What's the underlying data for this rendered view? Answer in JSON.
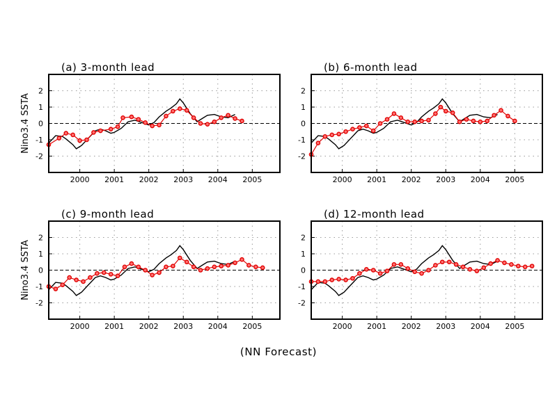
{
  "caption": "(NN Forecast)",
  "chart_data": [
    {
      "type": "line",
      "title": "(a) 3-month lead",
      "ylabel": "Nino3.4 SSTA",
      "xlim": [
        1999.1,
        2005.8
      ],
      "ylim": [
        -3,
        3
      ],
      "xticks": [
        2000,
        2001,
        2002,
        2003,
        2004,
        2005
      ],
      "yticks": [
        -2,
        -1,
        0,
        1,
        2
      ],
      "grid": true,
      "series": [
        {
          "role": "observed",
          "color": "#000000",
          "x": [
            1999.1,
            1999.3,
            1999.5,
            1999.6,
            1999.8,
            1999.9,
            2000.05,
            2000.25,
            2000.45,
            2000.6,
            2000.75,
            2000.9,
            2001.0,
            2001.2,
            2001.4,
            2001.6,
            2001.8,
            2002.0,
            2002.15,
            2002.3,
            2002.5,
            2002.65,
            2002.8,
            2002.9,
            2003.0,
            2003.2,
            2003.4,
            2003.55,
            2003.7,
            2003.9,
            2004.1,
            2004.3,
            2004.5
          ],
          "y": [
            -1.2,
            -0.75,
            -0.8,
            -0.95,
            -1.3,
            -1.55,
            -1.35,
            -0.9,
            -0.45,
            -0.35,
            -0.45,
            -0.6,
            -0.55,
            -0.3,
            0.1,
            0.2,
            0.05,
            -0.1,
            0.05,
            0.4,
            0.75,
            0.95,
            1.2,
            1.5,
            1.25,
            0.6,
            0.1,
            0.3,
            0.5,
            0.55,
            0.4,
            0.35,
            0.55
          ]
        },
        {
          "role": "forecast",
          "color": "#e00000",
          "x": [
            1999.1,
            1999.4,
            1999.6,
            1999.8,
            2000.0,
            2000.2,
            2000.4,
            2000.6,
            2000.9,
            2001.1,
            2001.25,
            2001.5,
            2001.7,
            2001.9,
            2002.1,
            2002.3,
            2002.5,
            2002.7,
            2002.9,
            2003.1,
            2003.3,
            2003.5,
            2003.7,
            2003.9,
            2004.1,
            2004.3,
            2004.5,
            2004.7
          ],
          "y": [
            -1.3,
            -0.9,
            -0.6,
            -0.7,
            -1.05,
            -1.0,
            -0.55,
            -0.45,
            -0.35,
            -0.2,
            0.35,
            0.4,
            0.25,
            0.05,
            -0.15,
            -0.1,
            0.45,
            0.75,
            0.9,
            0.8,
            0.35,
            0.0,
            -0.05,
            0.1,
            0.35,
            0.5,
            0.3,
            0.15
          ]
        }
      ]
    },
    {
      "type": "line",
      "title": "(b) 6-month lead",
      "ylabel": "",
      "xlim": [
        1999.1,
        2005.8
      ],
      "ylim": [
        -3,
        3
      ],
      "xticks": [
        2000,
        2001,
        2002,
        2003,
        2004,
        2005
      ],
      "yticks": [
        -2,
        -1,
        0,
        1,
        2
      ],
      "grid": true,
      "series": [
        {
          "role": "observed",
          "color": "#000000",
          "x": [
            1999.1,
            1999.3,
            1999.5,
            1999.6,
            1999.8,
            1999.9,
            2000.05,
            2000.25,
            2000.45,
            2000.6,
            2000.75,
            2000.9,
            2001.0,
            2001.2,
            2001.4,
            2001.6,
            2001.8,
            2002.0,
            2002.15,
            2002.3,
            2002.5,
            2002.65,
            2002.8,
            2002.9,
            2003.0,
            2003.2,
            2003.4,
            2003.55,
            2003.7,
            2003.9,
            2004.1,
            2004.3,
            2004.5
          ],
          "y": [
            -1.2,
            -0.75,
            -0.8,
            -0.95,
            -1.3,
            -1.55,
            -1.35,
            -0.9,
            -0.45,
            -0.35,
            -0.45,
            -0.6,
            -0.55,
            -0.3,
            0.1,
            0.2,
            0.05,
            -0.1,
            0.05,
            0.4,
            0.75,
            0.95,
            1.2,
            1.5,
            1.25,
            0.6,
            0.1,
            0.3,
            0.5,
            0.55,
            0.4,
            0.35,
            0.55
          ]
        },
        {
          "role": "forecast",
          "color": "#e00000",
          "x": [
            1999.1,
            1999.3,
            1999.5,
            1999.7,
            1999.9,
            2000.1,
            2000.3,
            2000.5,
            2000.7,
            2000.9,
            2001.1,
            2001.3,
            2001.5,
            2001.7,
            2001.9,
            2002.1,
            2002.3,
            2002.5,
            2002.7,
            2002.85,
            2003.0,
            2003.2,
            2003.4,
            2003.6,
            2003.8,
            2004.0,
            2004.2,
            2004.4,
            2004.6,
            2004.8,
            2005.0
          ],
          "y": [
            -1.9,
            -1.2,
            -0.8,
            -0.7,
            -0.65,
            -0.5,
            -0.35,
            -0.25,
            -0.15,
            -0.45,
            0.0,
            0.25,
            0.6,
            0.35,
            0.1,
            0.1,
            0.15,
            0.2,
            0.6,
            1.0,
            0.75,
            0.65,
            0.1,
            0.25,
            0.15,
            0.1,
            0.15,
            0.5,
            0.8,
            0.45,
            0.15
          ]
        }
      ]
    },
    {
      "type": "line",
      "title": "(c) 9-month lead",
      "ylabel": "Nino3.4 SSTA",
      "xlim": [
        1999.1,
        2005.8
      ],
      "ylim": [
        -3,
        3
      ],
      "xticks": [
        2000,
        2001,
        2002,
        2003,
        2004,
        2005
      ],
      "yticks": [
        -2,
        -1,
        0,
        1,
        2
      ],
      "grid": true,
      "series": [
        {
          "role": "observed",
          "color": "#000000",
          "x": [
            1999.1,
            1999.3,
            1999.5,
            1999.6,
            1999.8,
            1999.9,
            2000.05,
            2000.25,
            2000.45,
            2000.6,
            2000.75,
            2000.9,
            2001.0,
            2001.2,
            2001.4,
            2001.6,
            2001.8,
            2002.0,
            2002.15,
            2002.3,
            2002.5,
            2002.65,
            2002.8,
            2002.9,
            2003.0,
            2003.2,
            2003.4,
            2003.55,
            2003.7,
            2003.9,
            2004.1,
            2004.3,
            2004.5
          ],
          "y": [
            -1.2,
            -0.75,
            -0.8,
            -0.95,
            -1.3,
            -1.55,
            -1.35,
            -0.9,
            -0.45,
            -0.35,
            -0.45,
            -0.6,
            -0.55,
            -0.3,
            0.1,
            0.2,
            0.05,
            -0.1,
            0.05,
            0.4,
            0.75,
            0.95,
            1.2,
            1.5,
            1.25,
            0.6,
            0.1,
            0.3,
            0.5,
            0.55,
            0.4,
            0.35,
            0.55
          ]
        },
        {
          "role": "forecast",
          "color": "#e00000",
          "x": [
            1999.1,
            1999.3,
            1999.5,
            1999.7,
            1999.9,
            2000.1,
            2000.3,
            2000.5,
            2000.7,
            2000.9,
            2001.1,
            2001.3,
            2001.5,
            2001.7,
            2001.9,
            2002.1,
            2002.3,
            2002.5,
            2002.7,
            2002.9,
            2003.1,
            2003.3,
            2003.5,
            2003.7,
            2003.9,
            2004.1,
            2004.3,
            2004.5,
            2004.7,
            2004.9,
            2005.1,
            2005.3
          ],
          "y": [
            -1.0,
            -1.15,
            -0.9,
            -0.45,
            -0.6,
            -0.7,
            -0.45,
            -0.2,
            -0.15,
            -0.25,
            -0.35,
            0.2,
            0.4,
            0.2,
            0.0,
            -0.3,
            -0.15,
            0.2,
            0.25,
            0.75,
            0.5,
            0.2,
            0.0,
            0.1,
            0.2,
            0.25,
            0.3,
            0.45,
            0.65,
            0.3,
            0.2,
            0.15
          ]
        }
      ]
    },
    {
      "type": "line",
      "title": "(d) 12-month lead",
      "ylabel": "",
      "xlim": [
        1999.1,
        2005.8
      ],
      "ylim": [
        -3,
        3
      ],
      "xticks": [
        2000,
        2001,
        2002,
        2003,
        2004,
        2005
      ],
      "yticks": [
        -2,
        -1,
        0,
        1,
        2
      ],
      "grid": true,
      "series": [
        {
          "role": "observed",
          "color": "#000000",
          "x": [
            1999.1,
            1999.3,
            1999.5,
            1999.6,
            1999.8,
            1999.9,
            2000.05,
            2000.25,
            2000.45,
            2000.6,
            2000.75,
            2000.9,
            2001.0,
            2001.2,
            2001.4,
            2001.6,
            2001.8,
            2002.0,
            2002.15,
            2002.3,
            2002.5,
            2002.65,
            2002.8,
            2002.9,
            2003.0,
            2003.2,
            2003.4,
            2003.55,
            2003.7,
            2003.9,
            2004.1,
            2004.3,
            2004.5
          ],
          "y": [
            -1.2,
            -0.75,
            -0.8,
            -0.95,
            -1.3,
            -1.55,
            -1.35,
            -0.9,
            -0.45,
            -0.35,
            -0.45,
            -0.6,
            -0.55,
            -0.3,
            0.1,
            0.2,
            0.05,
            -0.1,
            0.05,
            0.4,
            0.75,
            0.95,
            1.2,
            1.5,
            1.25,
            0.6,
            0.1,
            0.3,
            0.5,
            0.55,
            0.4,
            0.35,
            0.55
          ]
        },
        {
          "role": "forecast",
          "color": "#e00000",
          "x": [
            1999.1,
            1999.3,
            1999.5,
            1999.7,
            1999.9,
            2000.1,
            2000.3,
            2000.5,
            2000.7,
            2000.9,
            2001.1,
            2001.3,
            2001.5,
            2001.7,
            2001.9,
            2002.1,
            2002.3,
            2002.5,
            2002.7,
            2002.9,
            2003.1,
            2003.3,
            2003.5,
            2003.7,
            2003.9,
            2004.1,
            2004.3,
            2004.5,
            2004.7,
            2004.9,
            2005.1,
            2005.3,
            2005.5
          ],
          "y": [
            -0.7,
            -0.7,
            -0.7,
            -0.6,
            -0.55,
            -0.6,
            -0.5,
            -0.2,
            0.05,
            0.0,
            -0.2,
            -0.05,
            0.35,
            0.35,
            0.1,
            -0.1,
            -0.2,
            0.0,
            0.3,
            0.5,
            0.5,
            0.35,
            0.2,
            0.05,
            -0.05,
            0.15,
            0.4,
            0.6,
            0.45,
            0.35,
            0.25,
            0.2,
            0.25
          ]
        }
      ]
    }
  ]
}
